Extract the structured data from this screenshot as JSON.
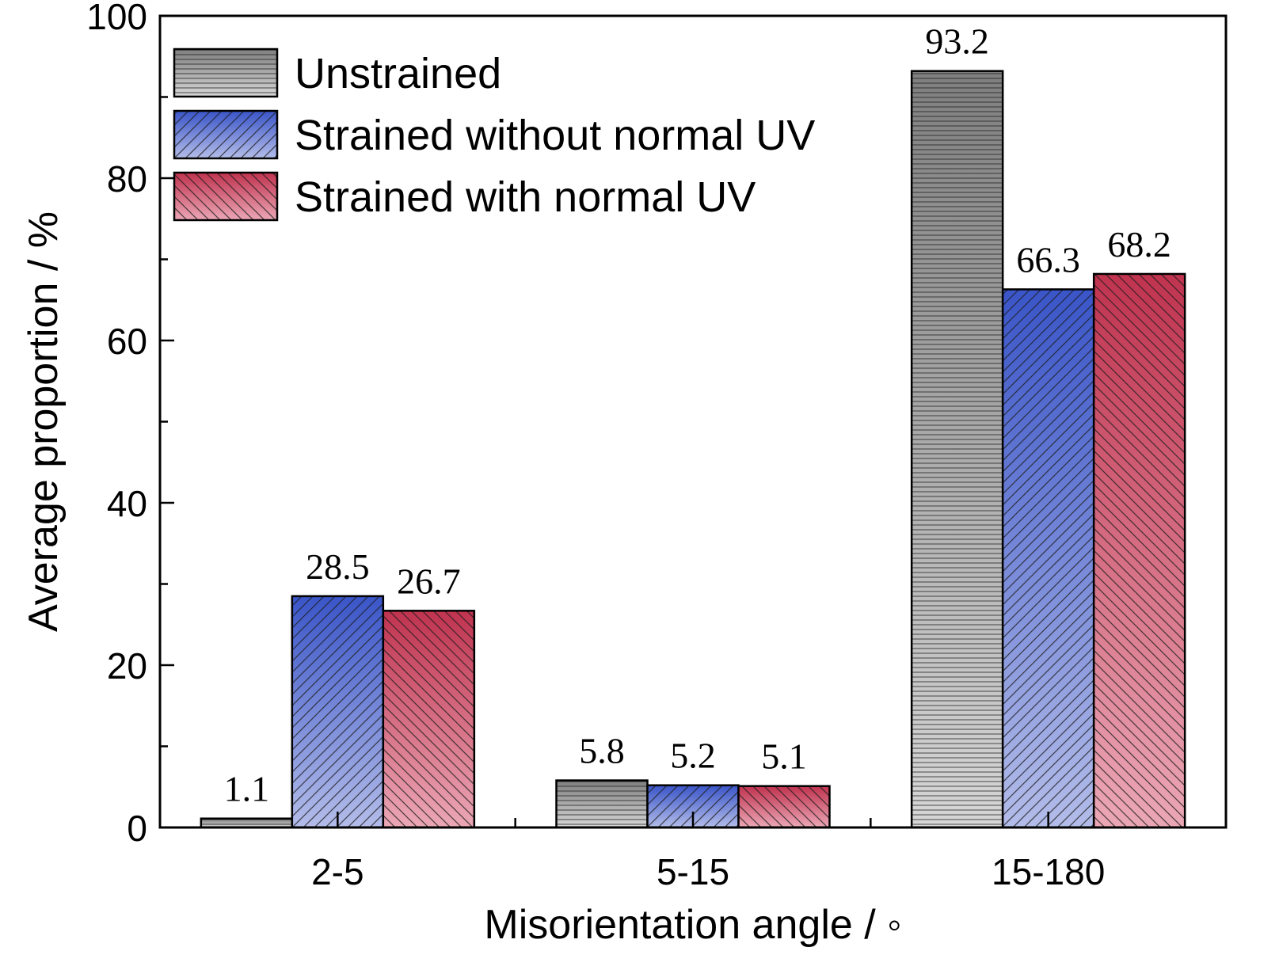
{
  "chart_data": {
    "type": "bar",
    "xlabel": "Misorientation angle / ◦",
    "ylabel": "Average proportion / %",
    "ylim": [
      0,
      100
    ],
    "yticks": [
      0,
      20,
      40,
      60,
      80,
      100
    ],
    "categories": [
      "2-5",
      "5-15",
      "15-180"
    ],
    "series": [
      {
        "name": "Unstrained",
        "values": [
          1.1,
          5.8,
          93.2
        ],
        "labels": [
          "1.1",
          "5.8",
          "93.2"
        ],
        "pattern": "horizontal",
        "color_dark": "#7f7f7f",
        "color_light": "#d6d6d6"
      },
      {
        "name": "Strained without normal UV",
        "values": [
          28.5,
          5.2,
          66.3
        ],
        "labels": [
          "28.5",
          "5.2",
          "66.3"
        ],
        "pattern": "diagonal-up",
        "color_dark": "#3a55c8",
        "color_light": "#b3bce9"
      },
      {
        "name": "Strained with normal UV",
        "values": [
          26.7,
          5.1,
          68.2
        ],
        "labels": [
          "26.7",
          "5.1",
          "68.2"
        ],
        "pattern": "diagonal-down",
        "color_dark": "#c0334f",
        "color_light": "#eba7b6"
      }
    ],
    "legend_position": "top-left",
    "grid": false
  }
}
